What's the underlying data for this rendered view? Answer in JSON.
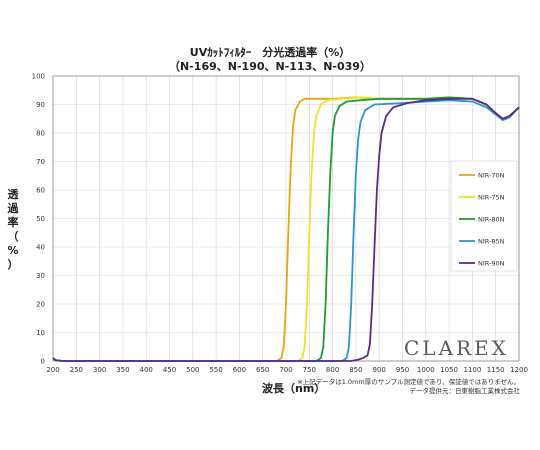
{
  "chart_data": {
    "type": "line",
    "title": "UVｶｯﾄﾌｨﾙﾀｰ　分光透過率（%）",
    "subtitle": "（N-169、N-190、N-113、N-039）",
    "xlabel": "波長（nm）",
    "ylabel": [
      "透",
      "過",
      "率",
      "（",
      "%",
      "）"
    ],
    "xlim": [
      200,
      1200
    ],
    "ylim": [
      0,
      100
    ],
    "xticks": [
      200,
      250,
      300,
      350,
      400,
      450,
      500,
      550,
      600,
      650,
      700,
      750,
      800,
      850,
      900,
      950,
      1000,
      1050,
      1100,
      1150,
      1200
    ],
    "yticks": [
      0,
      10,
      20,
      30,
      40,
      50,
      60,
      70,
      80,
      90,
      100
    ],
    "grid": true,
    "legend_position": "right",
    "series": [
      {
        "name": "NIR-70N",
        "color": "#e8a516",
        "x": [
          200,
          205,
          220,
          680,
          690,
          695,
          700,
          705,
          710,
          715,
          720,
          730,
          740,
          760,
          800,
          850,
          900,
          1000,
          1050,
          1100,
          1130,
          1150,
          1165,
          1180,
          1200
        ],
        "y": [
          1,
          0.3,
          0,
          0,
          1,
          5,
          20,
          45,
          68,
          82,
          88,
          91,
          92,
          92,
          92,
          92.5,
          92,
          92,
          92.5,
          92,
          90,
          87,
          85,
          86,
          89
        ]
      },
      {
        "name": "NIR-75N",
        "color": "#ede22e",
        "x": [
          200,
          205,
          220,
          725,
          735,
          740,
          745,
          750,
          755,
          760,
          765,
          775,
          790,
          820,
          860,
          900,
          1000,
          1050,
          1100,
          1130,
          1150,
          1165,
          1180,
          1200
        ],
        "y": [
          1,
          0.3,
          0,
          0,
          1,
          5,
          20,
          45,
          66,
          80,
          86,
          90,
          91.5,
          92,
          92.5,
          92,
          92,
          92.5,
          92,
          90,
          87,
          85,
          86,
          89
        ]
      },
      {
        "name": "NIR-80N",
        "color": "#1e9a36",
        "x": [
          200,
          205,
          220,
          765,
          775,
          780,
          785,
          790,
          795,
          800,
          805,
          815,
          830,
          860,
          900,
          1000,
          1050,
          1100,
          1130,
          1150,
          1165,
          1180,
          1200
        ],
        "y": [
          1,
          0.3,
          0,
          0,
          1,
          5,
          20,
          45,
          66,
          80,
          86,
          89.5,
          91,
          91.5,
          92,
          92,
          92.5,
          92,
          90,
          87,
          85,
          86,
          89
        ]
      },
      {
        "name": "NIR-85N",
        "color": "#2b95d0",
        "x": [
          200,
          205,
          220,
          820,
          830,
          835,
          840,
          845,
          850,
          855,
          860,
          870,
          890,
          950,
          1000,
          1050,
          1100,
          1130,
          1150,
          1165,
          1180,
          1200
        ],
        "y": [
          1,
          0.3,
          0,
          0,
          1,
          5,
          20,
          45,
          66,
          78,
          84,
          88,
          90,
          90.5,
          91,
          91.5,
          91,
          89,
          86.5,
          84.5,
          85.5,
          89
        ]
      },
      {
        "name": "NIR-90N",
        "color": "#5b2a86",
        "x": [
          200,
          205,
          220,
          840,
          855,
          865,
          875,
          880,
          885,
          890,
          895,
          900,
          905,
          915,
          930,
          960,
          1000,
          1050,
          1100,
          1130,
          1150,
          1165,
          1180,
          1200
        ],
        "y": [
          1,
          0.3,
          0,
          0,
          0.5,
          1,
          2,
          6,
          20,
          40,
          60,
          72,
          80,
          86,
          89,
          90.5,
          91.5,
          92,
          92,
          90,
          87,
          85,
          86,
          89
        ]
      }
    ]
  },
  "annotations": {
    "brand": "CLAREX",
    "note_line1": "※上記データは1.0mm厚のサンプル測定値であり、保証値ではありません。",
    "note_line2": "データ提供元：日東樹脂工業株式会社"
  }
}
